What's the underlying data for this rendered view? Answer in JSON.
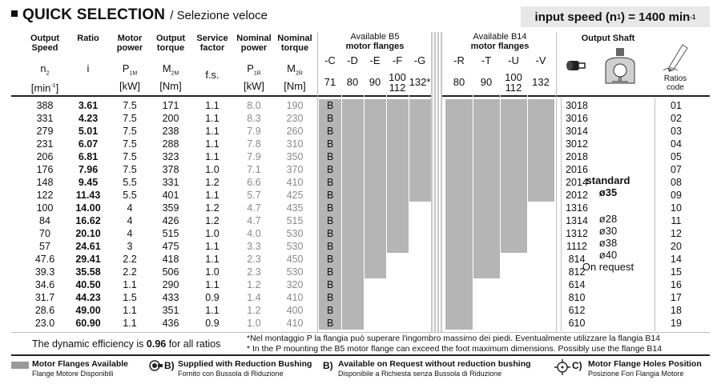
{
  "title": {
    "main": "QUICK SELECTION",
    "sub": "/ Selezione veloce"
  },
  "input_speed": {
    "label": "input speed (n",
    "sub": "1",
    "suffix": ") = 1400 min",
    "sup": "-1"
  },
  "headers": {
    "output_speed": "Output\nSpeed",
    "ratio": "Ratio",
    "motor_power": "Motor\npower",
    "output_torque": "Output\ntorque",
    "service_factor": "Service\nfactor",
    "nominal_power": "Nominal\npower",
    "nominal_torque": "Nominal\ntorque",
    "b5_title_1": "Available B5",
    "b5_title_2": "motor flanges",
    "b14_title_1": "Available B14",
    "b14_title_2": "motor flanges",
    "output_shaft": "Output Shaft",
    "ratios_code": "Ratios\ncode"
  },
  "symbols": {
    "n2": "n",
    "n2_sub": "2",
    "n2_unit": "[min",
    "n2_unit_sup": "-1",
    "i": "i",
    "p1m": "P",
    "p1m_sub": "1M",
    "p1m_unit": "[kW]",
    "m2m": "M",
    "m2m_sub": "2M",
    "m2m_unit": "[Nm]",
    "fs": "f.s.",
    "p1r": "P",
    "p1r_sub": "1R",
    "p1r_unit": "[kW]",
    "m2r": "M",
    "m2r_sub": "2R",
    "m2r_unit": "[Nm]"
  },
  "b5_flanges": [
    {
      "label": "-C",
      "size": "71"
    },
    {
      "label": "-D",
      "size": "80"
    },
    {
      "label": "-E",
      "size": "90"
    },
    {
      "label": "-F",
      "size": "100\n112"
    },
    {
      "label": "-G",
      "size": "132*"
    }
  ],
  "b14_flanges": [
    {
      "label": "-R",
      "size": "80"
    },
    {
      "label": "-T",
      "size": "90"
    },
    {
      "label": "-U",
      "size": "100\n112"
    },
    {
      "label": "-V",
      "size": "132"
    }
  ],
  "b_label": "B",
  "rows": [
    {
      "n2": "388",
      "i": "3.61",
      "p1m": "7.5",
      "m2m": "171",
      "fs": "1.1",
      "p1r": "8.0",
      "m2r": "190",
      "model": "3018",
      "code": "01",
      "b5": 5,
      "b14": 4
    },
    {
      "n2": "331",
      "i": "4.23",
      "p1m": "7.5",
      "m2m": "200",
      "fs": "1.1",
      "p1r": "8.3",
      "m2r": "230",
      "model": "3016",
      "code": "02",
      "b5": 5,
      "b14": 4
    },
    {
      "n2": "279",
      "i": "5.01",
      "p1m": "7.5",
      "m2m": "238",
      "fs": "1.1",
      "p1r": "7.9",
      "m2r": "260",
      "model": "3014",
      "code": "03",
      "b5": 5,
      "b14": 4
    },
    {
      "n2": "231",
      "i": "6.07",
      "p1m": "7.5",
      "m2m": "288",
      "fs": "1.1",
      "p1r": "7.8",
      "m2r": "310",
      "model": "3012",
      "code": "04",
      "b5": 5,
      "b14": 4
    },
    {
      "n2": "206",
      "i": "6.81",
      "p1m": "7.5",
      "m2m": "323",
      "fs": "1.1",
      "p1r": "7.9",
      "m2r": "350",
      "model": "2018",
      "code": "05",
      "b5": 5,
      "b14": 4
    },
    {
      "n2": "176",
      "i": "7.96",
      "p1m": "7.5",
      "m2m": "378",
      "fs": "1.0",
      "p1r": "7.1",
      "m2r": "370",
      "model": "2016",
      "code": "07",
      "b5": 5,
      "b14": 4
    },
    {
      "n2": "148",
      "i": "9.45",
      "p1m": "5.5",
      "m2m": "331",
      "fs": "1.2",
      "p1r": "6.6",
      "m2r": "410",
      "model": "2014",
      "code": "08",
      "b5": 5,
      "b14": 4
    },
    {
      "n2": "122",
      "i": "11.43",
      "p1m": "5.5",
      "m2m": "401",
      "fs": "1.1",
      "p1r": "5.7",
      "m2r": "425",
      "model": "2012",
      "code": "09",
      "b5": 5,
      "b14": 4
    },
    {
      "n2": "100",
      "i": "14.00",
      "p1m": "4",
      "m2m": "359",
      "fs": "1.2",
      "p1r": "4.7",
      "m2r": "435",
      "model": "1316",
      "code": "10",
      "b5": 4,
      "b14": 3
    },
    {
      "n2": "84",
      "i": "16.62",
      "p1m": "4",
      "m2m": "426",
      "fs": "1.2",
      "p1r": "4.7",
      "m2r": "515",
      "model": "1314",
      "code": "11",
      "b5": 4,
      "b14": 3
    },
    {
      "n2": "70",
      "i": "20.10",
      "p1m": "4",
      "m2m": "515",
      "fs": "1.0",
      "p1r": "4.0",
      "m2r": "530",
      "model": "1312",
      "code": "12",
      "b5": 4,
      "b14": 3
    },
    {
      "n2": "57",
      "i": "24.61",
      "p1m": "3",
      "m2m": "475",
      "fs": "1.1",
      "p1r": "3.3",
      "m2r": "530",
      "model": "1112",
      "code": "20",
      "b5": 4,
      "b14": 3
    },
    {
      "n2": "47.6",
      "i": "29.41",
      "p1m": "2.2",
      "m2m": "418",
      "fs": "1.1",
      "p1r": "2.3",
      "m2r": "450",
      "model": "814",
      "code": "14",
      "b5": 3,
      "b14": 2
    },
    {
      "n2": "39.3",
      "i": "35.58",
      "p1m": "2.2",
      "m2m": "506",
      "fs": "1.0",
      "p1r": "2.3",
      "m2r": "530",
      "model": "812",
      "code": "15",
      "b5": 3,
      "b14": 2
    },
    {
      "n2": "34.6",
      "i": "40.50",
      "p1m": "1.1",
      "m2m": "290",
      "fs": "1.1",
      "p1r": "1.2",
      "m2r": "320",
      "model": "614",
      "code": "16",
      "b5": 2,
      "b14": 1
    },
    {
      "n2": "31.7",
      "i": "44.23",
      "p1m": "1.5",
      "m2m": "433",
      "fs": "0.9",
      "p1r": "1.4",
      "m2r": "410",
      "model": "810",
      "code": "17",
      "b5": 2,
      "b14": 1
    },
    {
      "n2": "28.6",
      "i": "49.00",
      "p1m": "1.1",
      "m2m": "351",
      "fs": "1.1",
      "p1r": "1.2",
      "m2r": "400",
      "model": "612",
      "code": "18",
      "b5": 2,
      "b14": 1
    },
    {
      "n2": "23.0",
      "i": "60.90",
      "p1m": "1.1",
      "m2m": "436",
      "fs": "0.9",
      "p1r": "1.0",
      "m2r": "410",
      "model": "610",
      "code": "19",
      "b5": 2,
      "b14": 1
    }
  ],
  "output_shaft": {
    "standard_1": "standard",
    "standard_2": "ø35",
    "options": [
      "ø28",
      "ø30",
      "ø38",
      "ø40"
    ],
    "on_request": "On request"
  },
  "efficiency": {
    "prefix": "The dynamic efficiency is ",
    "value": "0.96",
    "suffix": " for all ratios"
  },
  "notes": [
    "*Nel montaggio P la flangia può superare l'ingombro massimo dei piedi. Eventualmente utilizzare la flangia B14",
    "* In the P mounting the B5 motor flange can exceed the foot maximum dimensions. Possibly use the flange B14"
  ],
  "legend": [
    {
      "title": "Motor Flanges Available",
      "sub": "Flange Motore Disponibili"
    },
    {
      "mark": "B)",
      "title": "Supplied with Reduction Bushing",
      "sub": "Fornito con Bussola di Riduzione"
    },
    {
      "mark": "B)",
      "title": "Available on Request without reduction bushing",
      "sub": "Disponibile a Richiesta senza Bussola di Riduzione"
    },
    {
      "mark": "C)",
      "title": "Motor Flange Holes Position",
      "sub": "Posizione Fori Flangia Motore"
    }
  ],
  "colors": {
    "bar": "#b5b5b5",
    "grey_text": "#8a8a8a",
    "swatch": "#9a9a9a"
  },
  "icons": [
    "motor-shaft-icon",
    "output-shaft-icon",
    "pencil-icon",
    "bushing-icon",
    "flange-holes-icon"
  ]
}
